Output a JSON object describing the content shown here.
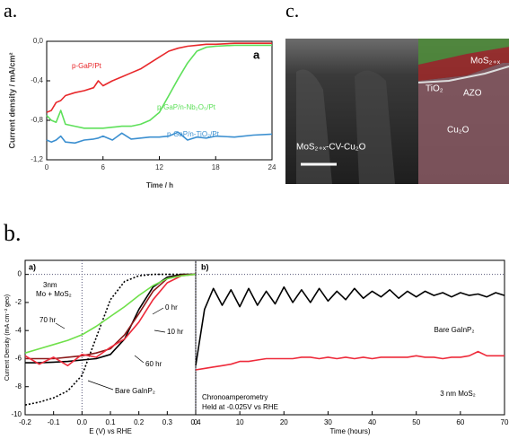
{
  "panel_labels": [
    "a.",
    "c.",
    "b."
  ],
  "image": {
    "labels": [
      "MoS₂₊ₓ",
      "TiO₂",
      "AZO",
      "Cu₂O",
      "MoS₂₊ₓ-CV-Cu₂O"
    ]
  },
  "chart_data": [
    {
      "type": "line",
      "xlabel": "Time / h",
      "ylabel": "Current density / mA/cm²",
      "annotations": [
        "a"
      ],
      "xlim": [
        0,
        24
      ],
      "xticks": [
        0,
        6,
        12,
        18,
        24
      ],
      "ylim": [
        -1.2,
        0
      ],
      "yticks": [
        {
          "value": 0,
          "label": "0,0"
        },
        {
          "value": -0.4,
          "label": "-0,4"
        },
        {
          "value": -0.8,
          "label": "-0,8"
        },
        {
          "value": -1.2,
          "label": "-1,2"
        }
      ],
      "x": [
        0,
        0.5,
        1,
        1.5,
        2,
        3,
        4,
        5,
        5.5,
        6,
        7,
        8,
        9,
        10,
        11,
        12,
        13,
        14,
        15,
        16,
        17,
        18,
        20,
        22,
        24
      ],
      "series": [
        {
          "name": "p-GaP/Pt",
          "color": "#e8282b",
          "values": [
            -0.72,
            -0.7,
            -0.62,
            -0.6,
            -0.55,
            -0.52,
            -0.5,
            -0.47,
            -0.4,
            -0.45,
            -0.4,
            -0.36,
            -0.32,
            -0.28,
            -0.22,
            -0.16,
            -0.1,
            -0.07,
            -0.05,
            -0.04,
            -0.03,
            -0.03,
            -0.02,
            -0.02,
            -0.02
          ]
        },
        {
          "name": "p-GaP/n-Nb₂O₅/Pt",
          "color": "#5ee05a",
          "values": [
            -0.75,
            -0.8,
            -0.82,
            -0.7,
            -0.84,
            -0.86,
            -0.88,
            -0.88,
            -0.88,
            -0.88,
            -0.87,
            -0.86,
            -0.86,
            -0.84,
            -0.8,
            -0.72,
            -0.55,
            -0.38,
            -0.22,
            -0.1,
            -0.06,
            -0.05,
            -0.04,
            -0.04,
            -0.04
          ]
        },
        {
          "name": "p-GaP/n-TiO₂/Pt",
          "color": "#3b8fd0",
          "values": [
            -1.0,
            -1.02,
            -1.0,
            -0.96,
            -1.02,
            -1.03,
            -1.0,
            -0.99,
            -0.98,
            -0.96,
            -1.0,
            -0.93,
            -0.99,
            -0.98,
            -0.97,
            -0.97,
            -0.96,
            -0.92,
            -1.0,
            -0.97,
            -0.98,
            -0.96,
            -0.97,
            -0.95,
            -0.94
          ]
        }
      ]
    },
    {
      "type": "line",
      "panel": "a)",
      "xlabel": "E (V) vs RHE",
      "ylabel": "Current Density (mA cm⁻² geo)",
      "annotations": [
        "3nm",
        "Mo + MoS₂"
      ],
      "zero_lines": true,
      "xlim": [
        -0.2,
        0.4
      ],
      "xticks": [
        -0.2,
        -0.1,
        {
          "value": 0,
          "label": "0.0"
        },
        0.1,
        0.2,
        0.3,
        0.4
      ],
      "ylim": [
        -10,
        1
      ],
      "yticks": [
        0,
        -2,
        -4,
        -6,
        -8,
        -10
      ],
      "x": [
        -0.2,
        -0.15,
        -0.1,
        -0.05,
        0,
        0.05,
        0.1,
        0.15,
        0.2,
        0.25,
        0.3,
        0.35,
        0.4
      ],
      "series": [
        {
          "name": "Bare GaInP₂",
          "color": "#000000",
          "dash": true,
          "values": [
            -9.3,
            -9.1,
            -8.8,
            -8.3,
            -7.2,
            -4.5,
            -1.8,
            -0.5,
            -0.1,
            0,
            0,
            0,
            0
          ]
        },
        {
          "name": "0 hr",
          "color": "#000000",
          "values": [
            -6.3,
            -6.3,
            -6.25,
            -6.2,
            -6.1,
            -6.0,
            -5.7,
            -4.6,
            -2.5,
            -0.9,
            -0.2,
            0,
            0
          ]
        },
        {
          "name": "10 hr",
          "color": "#8b1a1a",
          "values": [
            -6.0,
            -6.0,
            -6.0,
            -5.9,
            -5.8,
            -5.6,
            -5.3,
            -4.3,
            -2.8,
            -1.2,
            -0.3,
            -0.05,
            0
          ]
        },
        {
          "name": "60 hr",
          "color": "#ee2a3a",
          "values": [
            -5.8,
            -6.4,
            -5.9,
            -6.5,
            -5.7,
            -5.9,
            -5.2,
            -4.6,
            -3.4,
            -1.8,
            -0.6,
            -0.1,
            0
          ]
        },
        {
          "name": "70 hr",
          "color": "#6fe04a",
          "values": [
            -5.6,
            -5.3,
            -5.0,
            -4.7,
            -4.3,
            -3.7,
            -3.0,
            -2.3,
            -1.5,
            -0.8,
            -0.3,
            -0.1,
            0
          ]
        }
      ]
    },
    {
      "type": "line",
      "panel": "b)",
      "xlabel": "Time (hours)",
      "annotations": [
        "Chronoamperometry",
        "Held at -0.025V vs RHE"
      ],
      "zero_lines": true,
      "xlim": [
        0,
        70
      ],
      "xticks": [
        0,
        10,
        20,
        30,
        40,
        50,
        60,
        70
      ],
      "ylim": [
        -10,
        1
      ],
      "x": [
        0,
        2,
        4,
        6,
        8,
        10,
        12,
        14,
        16,
        18,
        20,
        22,
        24,
        26,
        28,
        30,
        32,
        34,
        36,
        38,
        40,
        42,
        44,
        46,
        48,
        50,
        52,
        54,
        56,
        58,
        60,
        62,
        64,
        66,
        68,
        70
      ],
      "series": [
        {
          "name": "Bare GaInP₂",
          "color": "#000000",
          "values": [
            -6.5,
            -2.5,
            -1.0,
            -2.2,
            -1.1,
            -2.3,
            -1.0,
            -2.2,
            -1.2,
            -2.1,
            -0.9,
            -2.0,
            -1.1,
            -2.0,
            -1.0,
            -1.9,
            -1.2,
            -1.8,
            -1.0,
            -1.7,
            -1.2,
            -1.6,
            -1.1,
            -1.7,
            -1.2,
            -1.6,
            -1.2,
            -1.5,
            -1.3,
            -1.6,
            -1.3,
            -1.5,
            -1.4,
            -1.6,
            -1.3,
            -1.5
          ]
        },
        {
          "name": "3 nm MoS₂",
          "color": "#ee2a3a",
          "values": [
            -6.8,
            -6.7,
            -6.6,
            -6.5,
            -6.4,
            -6.2,
            -6.2,
            -6.1,
            -6.0,
            -6.0,
            -6.0,
            -6.0,
            -5.9,
            -5.9,
            -6.0,
            -5.9,
            -6.0,
            -5.9,
            -6.0,
            -5.9,
            -6.0,
            -5.9,
            -5.9,
            -5.9,
            -5.9,
            -5.8,
            -5.9,
            -5.9,
            -6.0,
            -5.9,
            -5.9,
            -5.8,
            -5.5,
            -5.8,
            -5.8,
            -5.8
          ]
        }
      ]
    }
  ]
}
